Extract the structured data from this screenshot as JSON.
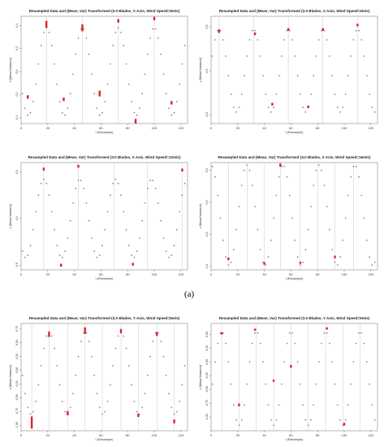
{
  "figure": {
    "label": "(a)"
  },
  "chart_data": [
    {
      "type": "scatter",
      "title": "Resampled Data and (Mean, Var) Transformed (3.0 Blades, X Axis, Wind Speed=8m/s)",
      "xlabel": "t (Resample)",
      "ylabel": "x (Mean/Variance)",
      "xlim": [
        0,
        125
      ],
      "ylim": [
        -0.45,
        0.48
      ],
      "xticks": [
        0,
        20,
        40,
        60,
        80,
        100,
        120
      ],
      "yticks": [
        0.4,
        0.2,
        0.0,
        -0.2,
        -0.4
      ],
      "yticklabels": [
        "0.4",
        "0.2",
        "0.0",
        "-0.2",
        "-0.4"
      ],
      "period": 27,
      "phase_peak": 19,
      "amp": 0.38,
      "mid": 0.0,
      "red_marks": [
        {
          "x": 5,
          "y": -0.22,
          "h": 0.03
        },
        {
          "x": 19,
          "y": 0.41,
          "h": 0.06
        },
        {
          "x": 32,
          "y": -0.24,
          "h": 0.03
        },
        {
          "x": 46,
          "y": 0.38,
          "h": 0.06
        },
        {
          "x": 59,
          "y": -0.19,
          "h": 0.05
        },
        {
          "x": 73,
          "y": 0.44,
          "h": 0.03
        },
        {
          "x": 86,
          "y": -0.43,
          "h": 0.04
        },
        {
          "x": 100,
          "y": 0.46,
          "h": 0.03
        },
        {
          "x": 113,
          "y": -0.27,
          "h": 0.03
        }
      ],
      "vlines": [
        19,
        46,
        73,
        100
      ]
    },
    {
      "type": "scatter",
      "title": "Resampled Data and (Mean, Var) Transformed (3.0 Blades, X Axis, Wind Speed=9m/s)",
      "xlabel": "t (Resample)",
      "ylabel": "x (Mean/Variance)",
      "xlim": [
        0,
        125
      ],
      "ylim": [
        -0.6,
        0.62
      ],
      "xticks": [
        0,
        20,
        40,
        60,
        80,
        100,
        120
      ],
      "yticks": [
        0.5,
        0.0,
        -0.5
      ],
      "yticklabels": [
        "0.5",
        "0.0",
        "-0.5"
      ],
      "period": 26,
      "phase_peak": 6,
      "amp": 0.47,
      "mid": 0.0,
      "red_marks": [
        {
          "x": 6,
          "y": 0.45,
          "h": 0.04
        },
        {
          "x": 33,
          "y": 0.42,
          "h": 0.03
        },
        {
          "x": 58,
          "y": 0.47,
          "h": 0.03
        },
        {
          "x": 84,
          "y": 0.47,
          "h": 0.03
        },
        {
          "x": 110,
          "y": 0.52,
          "h": 0.03
        },
        {
          "x": 46,
          "y": -0.38,
          "h": 0.03
        },
        {
          "x": 73,
          "y": -0.41,
          "h": 0.03
        }
      ],
      "vlines": [
        6,
        32,
        58,
        84,
        110
      ]
    },
    {
      "type": "scatter",
      "title": "Resampled Data and (Mean, Var) Transformed (3.0 Blades, X Axis, Wind Speed=12m/s)",
      "xlabel": "t (Resample)",
      "ylabel": "x (Mean/Variance)",
      "xlim": [
        0,
        125
      ],
      "ylim": [
        -0.55,
        0.6
      ],
      "xticks": [
        0,
        20,
        40,
        60,
        80,
        100,
        120
      ],
      "yticks": [
        0.5,
        0.0,
        -0.5
      ],
      "yticklabels": [
        "0.5",
        "0.0",
        "-0.5"
      ],
      "period": 27,
      "phase_peak": 17,
      "amp": 0.42,
      "mid": 0.0,
      "red_marks": [
        {
          "x": 17,
          "y": 0.53,
          "h": 0.03
        },
        {
          "x": 43,
          "y": 0.56,
          "h": 0.03
        },
        {
          "x": 121,
          "y": 0.52,
          "h": 0.03
        },
        {
          "x": 30,
          "y": -0.5,
          "h": 0.03
        },
        {
          "x": 84,
          "y": -0.49,
          "h": 0.03
        }
      ],
      "vlines": [
        17,
        43,
        70,
        95,
        121
      ]
    },
    {
      "type": "scatter",
      "title": "Resampled Data and (Mean, Var) Transformed (3.0 Blades, X Axis, Wind Speed=16m/s)",
      "xlabel": "t (Resample)",
      "ylabel": "x (Mean/Variance)",
      "xlim": [
        0,
        125
      ],
      "ylim": [
        -1.05,
        0.62
      ],
      "xticks": [
        0,
        20,
        40,
        60,
        80,
        100,
        120
      ],
      "yticks": [
        0.5,
        0.0,
        -0.5,
        -1.0
      ],
      "yticklabels": [
        "0.5",
        "0.0",
        "-0.5",
        "-1.0"
      ],
      "period": 27,
      "phase_peak": 27,
      "amp": 0.78,
      "mid": -0.2,
      "red_marks": [
        {
          "x": 52,
          "y": 0.58,
          "h": 0.05
        },
        {
          "x": 13,
          "y": -0.88,
          "h": 0.04
        },
        {
          "x": 40,
          "y": -0.95,
          "h": 0.04
        },
        {
          "x": 67,
          "y": -0.94,
          "h": 0.03
        },
        {
          "x": 93,
          "y": -0.85,
          "h": 0.04
        }
      ],
      "vlines": [
        13,
        27,
        40,
        52,
        67,
        80,
        93,
        107
      ]
    },
    {
      "type": "scatter",
      "title": "Resampled Data and (Mean, Var) Transformed (3.0 Blades, Y Axis, Wind Speed=8m/s)",
      "xlabel": "t (Resample)",
      "ylabel": "x (Mean/Variance)",
      "xlim": [
        0,
        125
      ],
      "ylim": [
        -1.1,
        0.85
      ],
      "xticks": [
        0,
        20,
        40,
        60,
        80,
        100,
        120
      ],
      "yticks": [
        0.75,
        0.5,
        0.25,
        0.0,
        -0.25,
        -0.5,
        -0.75,
        -1.0
      ],
      "yticklabels": [
        "0.75",
        "0.50",
        "0.25",
        "0.00",
        "-0.25",
        "-0.50",
        "-0.75",
        "-1.00"
      ],
      "period": 27,
      "phase_peak": 21,
      "amp": 0.75,
      "mid": -0.05,
      "red_marks": [
        {
          "x": 8,
          "y": -0.95,
          "h": 0.22
        },
        {
          "x": 21,
          "y": 0.65,
          "h": 0.09
        },
        {
          "x": 35,
          "y": -0.78,
          "h": 0.08
        },
        {
          "x": 48,
          "y": 0.72,
          "h": 0.12
        },
        {
          "x": 75,
          "y": 0.71,
          "h": 0.08
        },
        {
          "x": 88,
          "y": -0.82,
          "h": 0.06
        },
        {
          "x": 102,
          "y": 0.66,
          "h": 0.07
        },
        {
          "x": 115,
          "y": -0.93,
          "h": 0.07
        }
      ],
      "vlines": [
        8,
        21,
        35,
        48,
        61,
        75,
        88,
        102,
        115
      ]
    },
    {
      "type": "scatter",
      "title": "Resampled Data and (Mean, Var) Transformed (3.0 Blades, Y Axis, Wind Speed=9m/s)",
      "xlabel": "t (Resample)",
      "ylabel": "x (Mean/Variance)",
      "xlim": [
        0,
        125
      ],
      "ylim": [
        -1.25,
        0.7
      ],
      "xticks": [
        0,
        20,
        40,
        60,
        80,
        100,
        120
      ],
      "yticks": [
        0.5,
        0.25,
        0.0,
        -0.25,
        -0.5,
        -0.75,
        -1.0
      ],
      "yticklabels": [
        "0.50",
        "0.25",
        "0.00",
        "-0.25",
        "-0.50",
        "-0.75",
        "-1.00"
      ],
      "period": 26,
      "phase_peak": 8,
      "amp": 0.85,
      "mid": -0.3,
      "red_marks": [
        {
          "x": 8,
          "y": 0.52,
          "h": 0.04
        },
        {
          "x": 33,
          "y": 0.59,
          "h": 0.03
        },
        {
          "x": 87,
          "y": 0.61,
          "h": 0.04
        },
        {
          "x": 21,
          "y": -0.78,
          "h": 0.05
        },
        {
          "x": 47,
          "y": -0.34,
          "h": 0.04
        },
        {
          "x": 60,
          "y": -0.08,
          "h": 0.05
        },
        {
          "x": 100,
          "y": -1.13,
          "h": 0.05
        }
      ],
      "vlines": [
        8,
        21,
        34,
        47,
        60,
        73,
        86,
        99,
        112
      ]
    }
  ]
}
